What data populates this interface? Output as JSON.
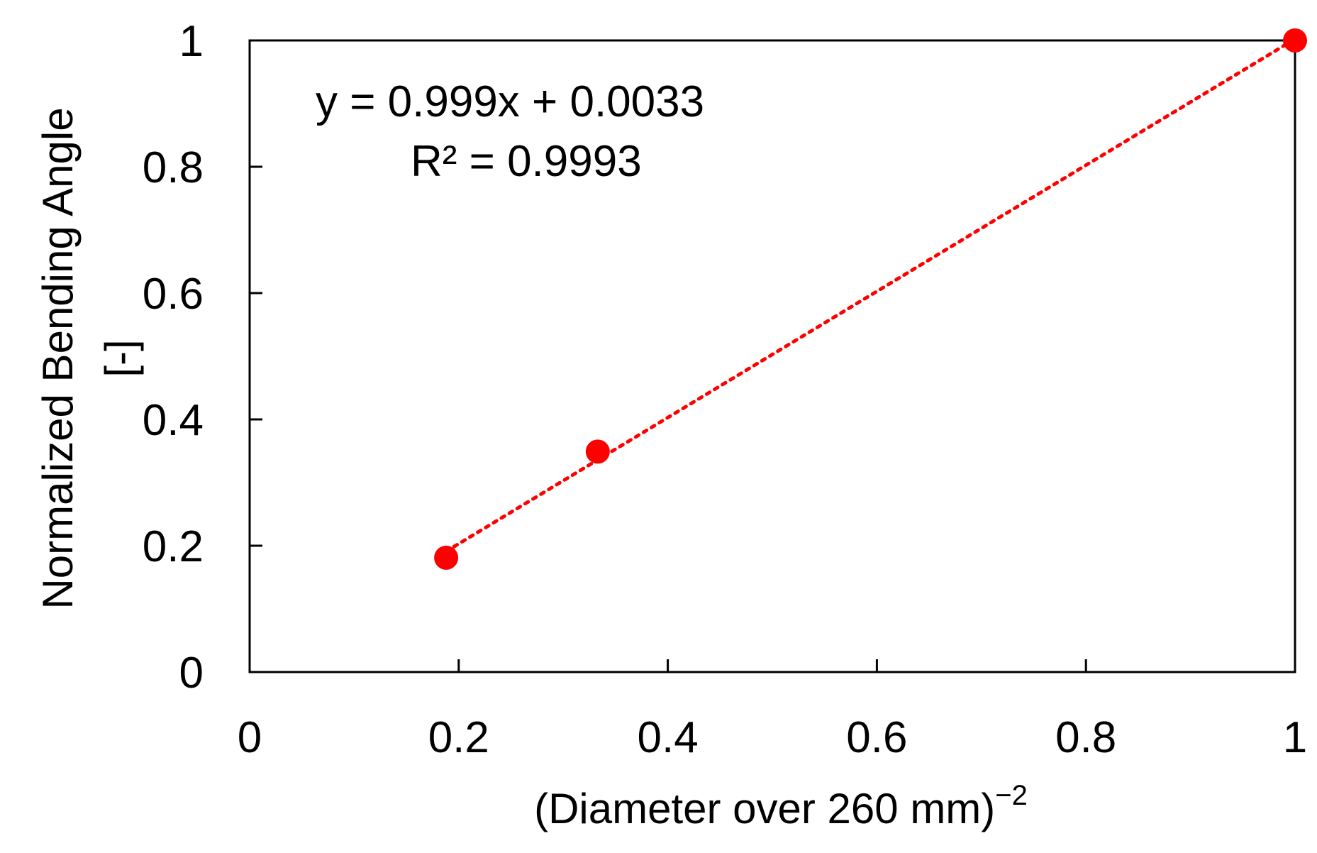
{
  "chart_data": {
    "type": "scatter",
    "xlabel": "(Diameter over 260 mm)",
    "xlabel_superscript": "−2",
    "ylabel_line1": "Normalized Bending Angle",
    "ylabel_line2": "[-]",
    "xlim": [
      0,
      1
    ],
    "ylim": [
      0,
      1
    ],
    "x_ticks": [
      0,
      0.2,
      0.4,
      0.6,
      0.8,
      1
    ],
    "x_tick_labels": [
      "0",
      "0.2",
      "0.4",
      "0.6",
      "0.8",
      "1"
    ],
    "y_ticks": [
      0,
      0.2,
      0.4,
      0.6,
      0.8,
      1
    ],
    "y_tick_labels": [
      "0",
      "0.2",
      "0.4",
      "0.6",
      "0.8",
      "1"
    ],
    "grid": false,
    "legend": "none",
    "series": [
      {
        "color": "#ff0000",
        "marker": "circle",
        "points": [
          {
            "x": 0.188,
            "y": 0.181
          },
          {
            "x": 0.333,
            "y": 0.349
          },
          {
            "x": 1.0,
            "y": 1.0
          }
        ]
      }
    ],
    "trendline": {
      "type": "linear",
      "style": "dotted",
      "color": "#ff0000",
      "slope": 0.999,
      "intercept": 0.0033,
      "x_range": [
        0.188,
        1.0
      ],
      "equation_text": "y = 0.999x + 0.0033",
      "r2_text": "R² = 0.9993"
    }
  }
}
